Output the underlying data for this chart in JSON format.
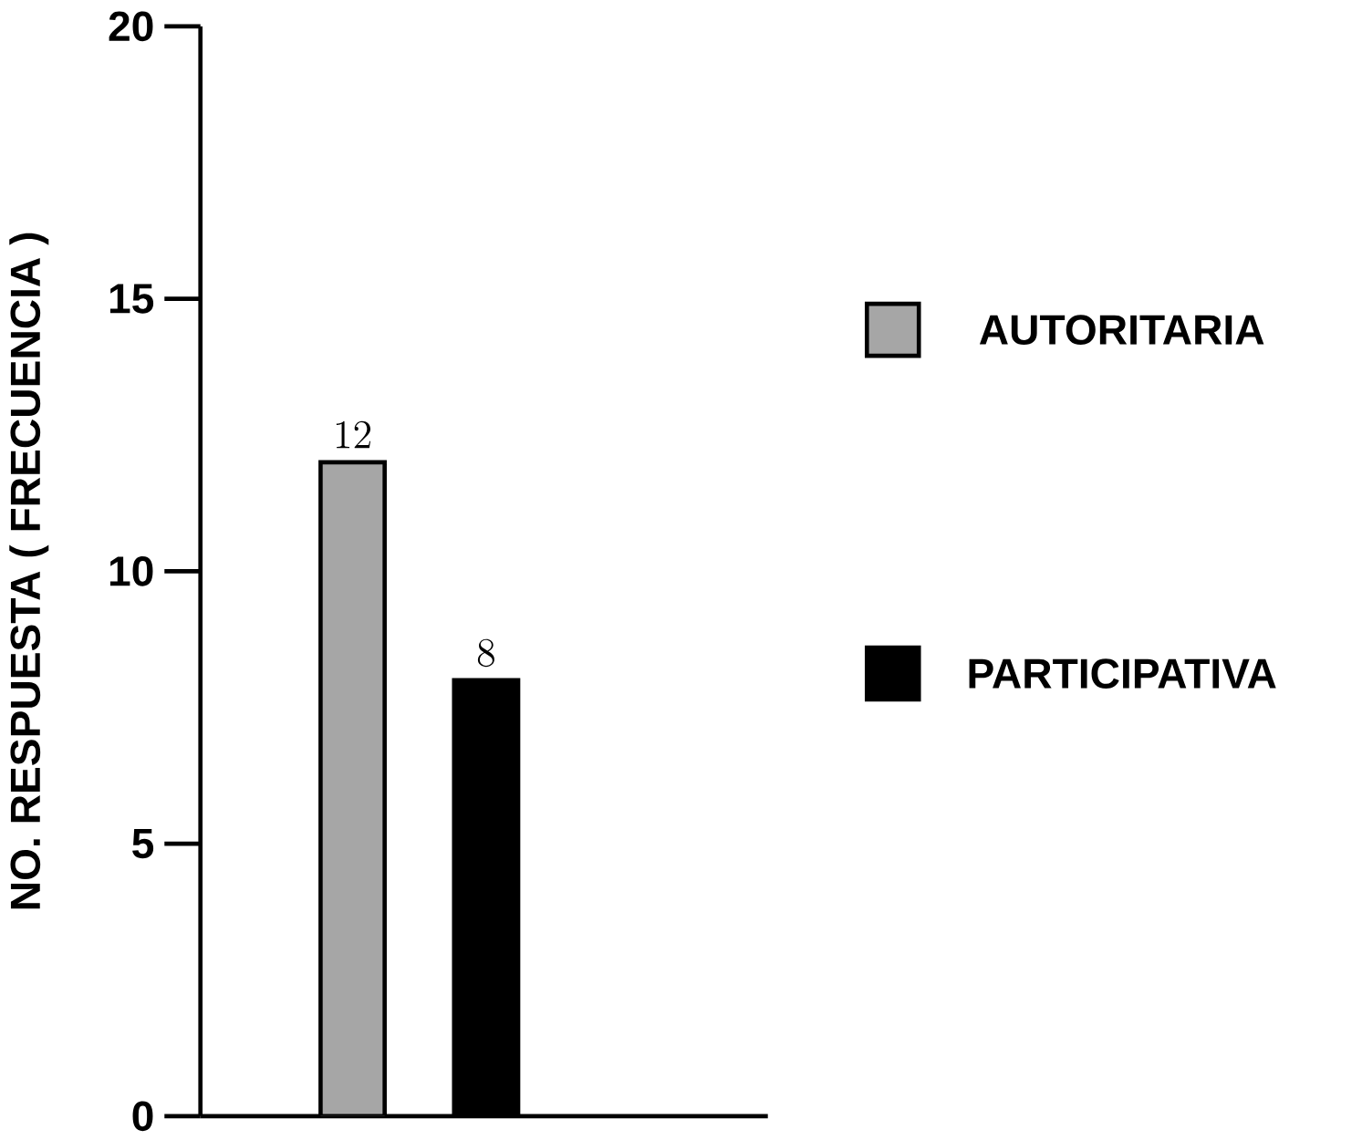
{
  "chart_data": {
    "type": "bar",
    "ylabel": "NO. RESPUESTA ( FRECUENCIA )",
    "categories": [
      null,
      null
    ],
    "series": [
      {
        "name": "AUTORITARIA",
        "color": "#a6a6a6",
        "values": [
          12,
          null
        ]
      },
      {
        "name": "PARTICIPATIVA",
        "color": "#000000",
        "values": [
          null,
          8
        ]
      }
    ],
    "ylim": [
      0,
      20
    ],
    "yticks": [
      0,
      5,
      10,
      15,
      20
    ],
    "data_labels": true,
    "legend": "right",
    "grid": false
  }
}
